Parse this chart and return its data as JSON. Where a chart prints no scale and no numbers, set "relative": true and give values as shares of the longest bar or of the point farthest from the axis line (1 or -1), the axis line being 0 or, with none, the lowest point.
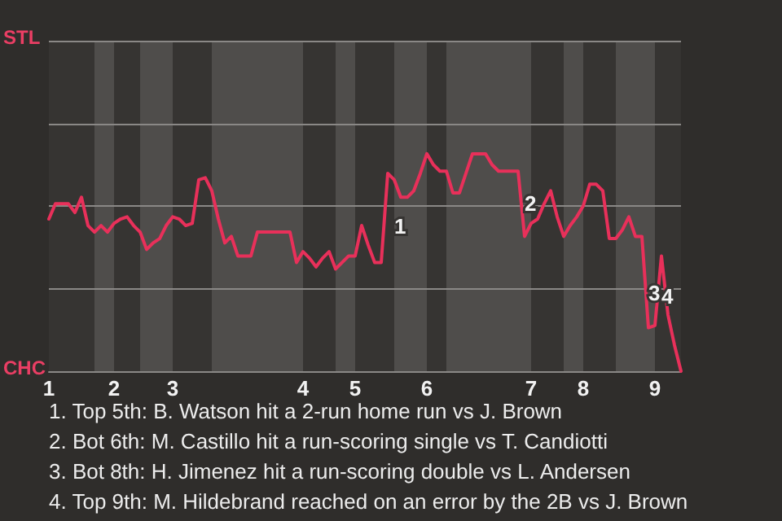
{
  "chart_data": {
    "type": "line",
    "categories": [
      "1",
      null,
      null,
      null,
      null,
      null,
      null,
      null,
      null,
      null,
      "2",
      null,
      null,
      null,
      null,
      null,
      null,
      null,
      null,
      "3",
      null,
      null,
      null,
      null,
      null,
      null,
      null,
      null,
      null,
      null,
      null,
      null,
      null,
      null,
      null,
      null,
      null,
      null,
      null,
      "4",
      null,
      null,
      null,
      null,
      null,
      null,
      null,
      "5",
      null,
      null,
      null,
      null,
      null,
      null,
      null,
      null,
      null,
      null,
      "6",
      null,
      null,
      null,
      null,
      null,
      null,
      null,
      null,
      null,
      null,
      null,
      null,
      null,
      null,
      null,
      "7",
      null,
      null,
      null,
      null,
      null,
      null,
      null,
      "8",
      null,
      null,
      null,
      null,
      null,
      null,
      null,
      null,
      null,
      null,
      "9",
      null,
      null,
      null,
      null
    ],
    "series": [
      {
        "color": "#e8305a",
        "values": [
          0.7,
          0.77,
          0.77,
          0.77,
          0.73,
          0.8,
          0.67,
          0.64,
          0.67,
          0.64,
          0.68,
          0.7,
          0.71,
          0.67,
          0.64,
          0.56,
          0.59,
          0.61,
          0.67,
          0.71,
          0.7,
          0.67,
          0.68,
          0.88,
          0.89,
          0.83,
          0.7,
          0.59,
          0.62,
          0.53,
          0.53,
          0.53,
          0.64,
          0.64,
          0.64,
          0.64,
          0.64,
          0.64,
          0.5,
          0.55,
          0.52,
          0.48,
          0.52,
          0.55,
          0.47,
          0.5,
          0.53,
          0.53,
          0.67,
          0.58,
          0.5,
          0.5,
          0.91,
          0.88,
          0.8,
          0.8,
          0.83,
          0.91,
          1,
          0.95,
          0.92,
          0.92,
          0.82,
          0.82,
          0.91,
          1,
          1,
          1,
          0.95,
          0.92,
          0.92,
          0.92,
          0.92,
          0.62,
          0.68,
          0.7,
          0.77,
          0.83,
          0.71,
          0.62,
          0.67,
          0.71,
          0.76,
          0.86,
          0.86,
          0.83,
          0.61,
          0.61,
          0.65,
          0.71,
          0.62,
          0.62,
          0.2,
          0.21,
          0.53,
          0.26,
          0.12,
          0
        ]
      }
    ],
    "relative": true,
    "ref_lines": [
      {
        "axis": "y",
        "value": 0.38,
        "color": "#8a8886"
      },
      {
        "axis": "y",
        "value": 0.76,
        "color": "#8a8886"
      },
      {
        "axis": "y",
        "value": 1.14,
        "color": "#8a8886"
      },
      {
        "axis": "y",
        "value": 1.52,
        "color": "#8a8886"
      }
    ],
    "marker": "none",
    "annotations": [
      "STL",
      "CHC",
      "1",
      "2",
      "3",
      "4",
      "1. Top 5th: B. Watson hit a 2-run home run vs J. Brown",
      "2. Bot 6th: M. Castillo hit a run-scoring single vs T. Candiotti",
      "3. Bot 8th: H. Jimenez hit a run-scoring double vs L. Andersen",
      "4. Top 9th: M. Hildebrand reached on an error by the 2B vs J. Brown"
    ]
  }
}
